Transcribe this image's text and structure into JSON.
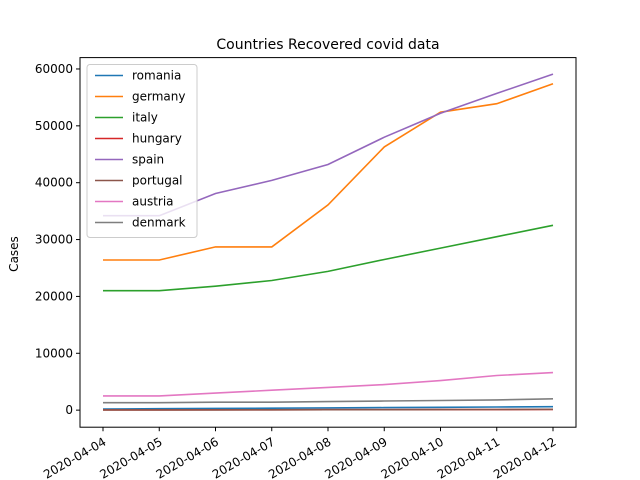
{
  "chart_data": {
    "type": "line",
    "title": "Countries Recovered covid data",
    "xlabel": "",
    "ylabel": "Cases",
    "x": [
      "2020-04-04",
      "2020-04-05",
      "2020-04-06",
      "2020-04-07",
      "2020-04-08",
      "2020-04-09",
      "2020-04-10",
      "2020-04-11",
      "2020-04-12"
    ],
    "ylim": [
      -3000,
      62000
    ],
    "yticks": [
      0,
      10000,
      20000,
      30000,
      40000,
      50000,
      60000
    ],
    "grid": false,
    "legend_position": "upper-left",
    "series": [
      {
        "name": "romania",
        "color": "#1f77b4",
        "values": [
          200,
          250,
          300,
          350,
          400,
          450,
          500,
          550,
          600
        ]
      },
      {
        "name": "germany",
        "color": "#ff7f0e",
        "values": [
          26400,
          26400,
          28700,
          28700,
          36100,
          46300,
          52400,
          53900,
          57400
        ]
      },
      {
        "name": "italy",
        "color": "#2ca02c",
        "values": [
          21000,
          21000,
          21800,
          22800,
          24400,
          26500,
          28500,
          30500,
          32500
        ]
      },
      {
        "name": "hungary",
        "color": "#d62728",
        "values": [
          50,
          50,
          60,
          60,
          70,
          80,
          90,
          100,
          120
        ]
      },
      {
        "name": "spain",
        "color": "#9467bd",
        "values": [
          34200,
          34200,
          38100,
          40400,
          43200,
          48000,
          52200,
          55700,
          59100
        ]
      },
      {
        "name": "portugal",
        "color": "#8c564b",
        "values": [
          40,
          40,
          50,
          60,
          70,
          80,
          100,
          120,
          140
        ]
      },
      {
        "name": "austria",
        "color": "#e377c2",
        "values": [
          2500,
          2500,
          3000,
          3500,
          4000,
          4500,
          5200,
          6100,
          6600
        ]
      },
      {
        "name": "denmark",
        "color": "#7f7f7f",
        "values": [
          1300,
          1300,
          1400,
          1400,
          1500,
          1600,
          1700,
          1800,
          2000
        ]
      }
    ]
  }
}
